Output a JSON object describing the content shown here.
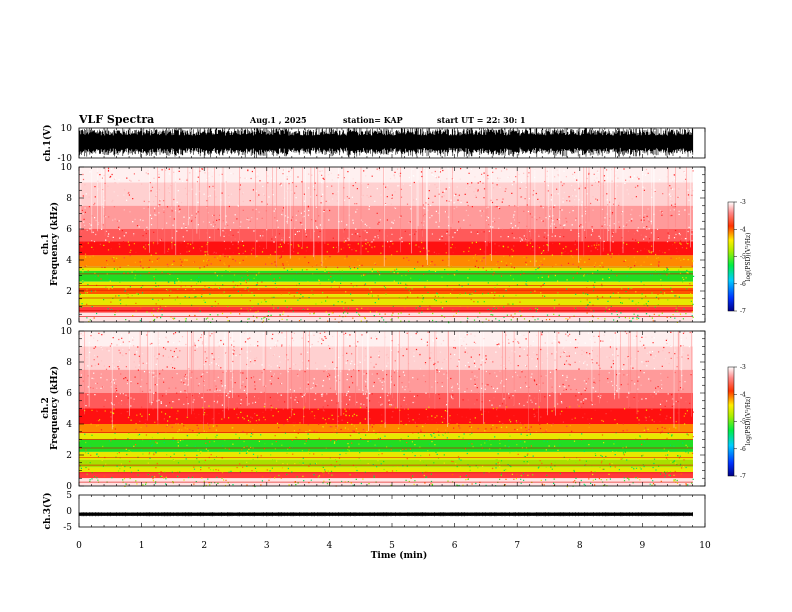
{
  "header": {
    "title": "VLF Spectra",
    "date": "Aug.1  , 2025",
    "station": "station= KAP",
    "start": "start  UT  =   22: 30: 1"
  },
  "colors": {
    "spec_low": "#0000aa",
    "spec_mid": "#22dd22",
    "spec_yellow": "#e8e800",
    "spec_high": "#ff1010",
    "spec_top": "#ffffff",
    "trace": "#000000"
  },
  "chart_data": [
    {
      "type": "line",
      "id": "ch1-waveform",
      "ylabel": "ch.1(V)",
      "ylim": [
        -10,
        10
      ],
      "yticks": [
        "10",
        "-10"
      ],
      "xlim": [
        0,
        10
      ],
      "description_series": "dense waveform filling most of the range, data extends to ~9.85 min"
    },
    {
      "type": "heatmap",
      "id": "ch1-spectrogram",
      "ylabel_top": "ch.1",
      "ylabel": "Frequency  (kHz)",
      "ylim": [
        0,
        10
      ],
      "yticks": [
        "0",
        "2",
        "4",
        "6",
        "8",
        "10"
      ],
      "xlim": [
        0,
        10
      ],
      "bands_kHz": [
        {
          "from": 0,
          "to": 1.0,
          "level": "mixed"
        },
        {
          "from": 1.0,
          "to": 3.6,
          "level": "green-yellow"
        },
        {
          "from": 3.6,
          "to": 5.2,
          "level": "yellow-red"
        },
        {
          "from": 5.2,
          "to": 10,
          "level": "red-white"
        }
      ],
      "colorbar": {
        "label": "log(PSD)(V²/Hz)",
        "range": [
          -7,
          -3
        ],
        "ticks": [
          "-3",
          "-4",
          "-5",
          "-6",
          "-7"
        ]
      }
    },
    {
      "type": "heatmap",
      "id": "ch2-spectrogram",
      "ylabel_top": "ch.2",
      "ylabel": "Frequency  (kHz)",
      "ylim": [
        0,
        10
      ],
      "yticks": [
        "0",
        "2",
        "4",
        "6",
        "8",
        "10"
      ],
      "xlim": [
        0,
        10
      ],
      "bands_kHz": [
        {
          "from": 0,
          "to": 1.0,
          "level": "mixed"
        },
        {
          "from": 1.0,
          "to": 3.4,
          "level": "green-yellow"
        },
        {
          "from": 3.4,
          "to": 5.0,
          "level": "yellow-red"
        },
        {
          "from": 5.0,
          "to": 10,
          "level": "red-white"
        }
      ],
      "colorbar": {
        "label": "log(PSD)(V²/Hz)",
        "range": [
          -7,
          -3
        ],
        "ticks": [
          "-3",
          "-4",
          "-5",
          "-6",
          "-7"
        ]
      }
    },
    {
      "type": "line",
      "id": "ch3-waveform",
      "ylabel": "ch.3(V)",
      "ylim": [
        -5,
        5
      ],
      "yticks": [
        "5",
        "0",
        "-5"
      ],
      "xlim": [
        0,
        10
      ],
      "xlabel": "Time  (min)",
      "xticks": [
        "0",
        "1",
        "2",
        "3",
        "4",
        "5",
        "6",
        "7",
        "8",
        "9",
        "10"
      ],
      "level_mean": -1.0,
      "level_amplitude": 0.5
    }
  ]
}
